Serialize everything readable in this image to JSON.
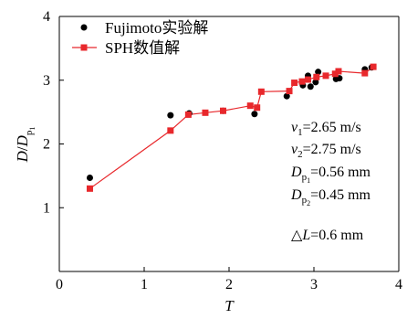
{
  "chart_data": {
    "type": "scatter",
    "xlabel": "T",
    "ylabel": "D/D_{p1}",
    "xlim": [
      0,
      4
    ],
    "ylim": [
      0,
      4
    ],
    "xticks": [
      0,
      1,
      2,
      3,
      4
    ],
    "yticks": [
      1,
      2,
      3,
      4
    ],
    "x_tick_labels": [
      "0",
      "1",
      "2",
      "3",
      "4"
    ],
    "y_tick_labels": [
      "1",
      "2",
      "3",
      "4"
    ],
    "grid": false,
    "legend_position": "top-left",
    "series": [
      {
        "name": "Fujimoto实验解",
        "marker": "circle",
        "color": "#000000",
        "points": [
          {
            "x": 0.36,
            "y": 1.47
          },
          {
            "x": 1.31,
            "y": 2.45
          },
          {
            "x": 1.53,
            "y": 2.48
          },
          {
            "x": 1.93,
            "y": 2.52
          },
          {
            "x": 2.3,
            "y": 2.47
          },
          {
            "x": 2.68,
            "y": 2.75
          },
          {
            "x": 2.87,
            "y": 2.92
          },
          {
            "x": 2.93,
            "y": 3.07
          },
          {
            "x": 2.96,
            "y": 2.9
          },
          {
            "x": 3.02,
            "y": 2.97
          },
          {
            "x": 3.05,
            "y": 3.13
          },
          {
            "x": 3.26,
            "y": 3.02
          },
          {
            "x": 3.3,
            "y": 3.03
          },
          {
            "x": 3.6,
            "y": 3.17
          },
          {
            "x": 3.68,
            "y": 3.2
          }
        ]
      },
      {
        "name": "SPH数值解",
        "marker": "square",
        "color": "#e8282c",
        "points": [
          {
            "x": 0.36,
            "y": 1.3
          },
          {
            "x": 1.31,
            "y": 2.21
          },
          {
            "x": 1.52,
            "y": 2.46
          },
          {
            "x": 1.72,
            "y": 2.49
          },
          {
            "x": 1.93,
            "y": 2.52
          },
          {
            "x": 2.25,
            "y": 2.6
          },
          {
            "x": 2.33,
            "y": 2.57
          },
          {
            "x": 2.38,
            "y": 2.82
          },
          {
            "x": 2.71,
            "y": 2.83
          },
          {
            "x": 2.77,
            "y": 2.96
          },
          {
            "x": 2.86,
            "y": 2.98
          },
          {
            "x": 2.93,
            "y": 3.01
          },
          {
            "x": 3.03,
            "y": 3.05
          },
          {
            "x": 3.14,
            "y": 3.07
          },
          {
            "x": 3.25,
            "y": 3.1
          },
          {
            "x": 3.29,
            "y": 3.14
          },
          {
            "x": 3.6,
            "y": 3.11
          },
          {
            "x": 3.7,
            "y": 3.21
          }
        ]
      }
    ],
    "annotations": [
      {
        "var": "v",
        "sub": "1",
        "value": "=2.65 m/s"
      },
      {
        "var": "v",
        "sub": "2",
        "value": "=2.75 m/s"
      },
      {
        "var": "D",
        "sub": "p",
        "subsub": "1",
        "value": "=0.56 mm"
      },
      {
        "var": "D",
        "sub": "p",
        "subsub": "2",
        "value": "=0.45 mm"
      },
      {
        "prefix": "△",
        "var": "L",
        "value": "=0.6 mm"
      }
    ]
  }
}
